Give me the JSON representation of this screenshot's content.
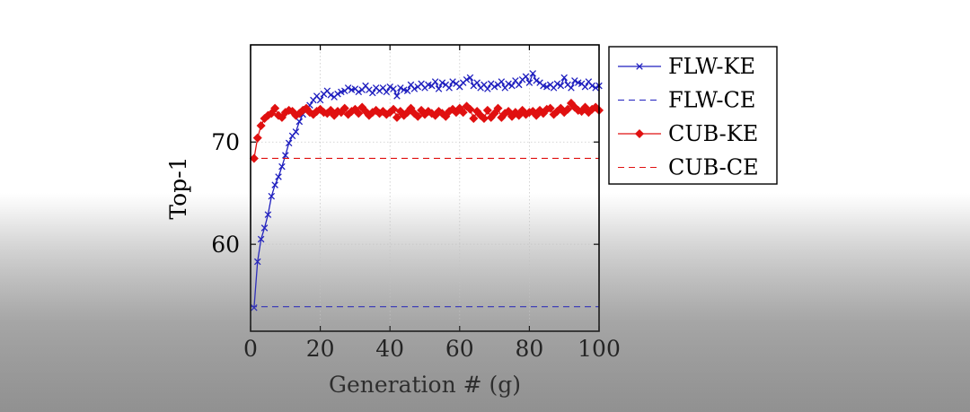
{
  "chart_data": {
    "type": "line",
    "title": "",
    "xlabel": "Generation # (g)",
    "ylabel": "Top-1",
    "xlim": [
      0,
      100
    ],
    "ylim": [
      51.5,
      79.5
    ],
    "xticks": [
      0,
      20,
      40,
      60,
      80,
      100
    ],
    "yticks": [
      60,
      70
    ],
    "grid": true,
    "legend_position": "outside-right-top",
    "series": [
      {
        "name": "FLW-KE",
        "color": "#1f1fbf",
        "style": "solid",
        "marker": "x",
        "x": [
          1,
          2,
          3,
          4,
          5,
          6,
          7,
          8,
          9,
          10,
          11,
          12,
          13,
          14,
          15,
          16,
          17,
          18,
          19,
          20,
          21,
          22,
          23,
          24,
          25,
          26,
          27,
          28,
          29,
          30,
          31,
          32,
          33,
          34,
          35,
          36,
          37,
          38,
          39,
          40,
          41,
          42,
          43,
          44,
          45,
          46,
          47,
          48,
          49,
          50,
          51,
          52,
          53,
          54,
          55,
          56,
          57,
          58,
          59,
          60,
          61,
          62,
          63,
          64,
          65,
          66,
          67,
          68,
          69,
          70,
          71,
          72,
          73,
          74,
          75,
          76,
          77,
          78,
          79,
          80,
          81,
          82,
          83,
          84,
          85,
          86,
          87,
          88,
          89,
          90,
          91,
          92,
          93,
          94,
          95,
          96,
          97,
          98,
          99,
          100
        ],
        "y": [
          53.8,
          58.3,
          60.5,
          61.6,
          62.9,
          64.7,
          65.8,
          66.6,
          67.6,
          68.7,
          69.9,
          70.6,
          71.0,
          72.0,
          72.7,
          73.2,
          73.6,
          74.1,
          74.5,
          74.1,
          74.7,
          75.0,
          74.6,
          74.4,
          74.7,
          74.9,
          75.0,
          75.3,
          75.1,
          75.2,
          74.9,
          75.1,
          75.5,
          75.1,
          74.8,
          75.3,
          75.0,
          75.3,
          74.9,
          75.4,
          75.2,
          74.5,
          75.3,
          75.1,
          75.0,
          75.6,
          75.2,
          75.4,
          75.7,
          75.3,
          75.6,
          75.5,
          75.9,
          75.2,
          75.8,
          75.6,
          75.3,
          75.9,
          75.7,
          75.4,
          75.8,
          76.1,
          76.3,
          75.5,
          75.8,
          75.3,
          75.6,
          75.2,
          75.7,
          75.4,
          75.6,
          75.9,
          75.3,
          75.7,
          75.5,
          76.0,
          75.6,
          76.1,
          76.4,
          75.8,
          76.7,
          76.0,
          75.8,
          75.5,
          75.4,
          75.6,
          75.3,
          75.7,
          75.5,
          76.3,
          75.6,
          75.3,
          76.0,
          75.8,
          75.7,
          75.4,
          75.9,
          75.5,
          75.3,
          75.5
        ]
      },
      {
        "name": "FLW-CE",
        "color": "#1f1fbf",
        "style": "dashed",
        "marker": "none",
        "x": [
          0,
          100
        ],
        "y": [
          53.9,
          53.9
        ]
      },
      {
        "name": "CUB-KE",
        "color": "#e01010",
        "style": "solid",
        "marker": "diamond",
        "x": [
          1,
          2,
          3,
          4,
          5,
          6,
          7,
          8,
          9,
          10,
          11,
          12,
          13,
          14,
          15,
          16,
          17,
          18,
          19,
          20,
          21,
          22,
          23,
          24,
          25,
          26,
          27,
          28,
          29,
          30,
          31,
          32,
          33,
          34,
          35,
          36,
          37,
          38,
          39,
          40,
          41,
          42,
          43,
          44,
          45,
          46,
          47,
          48,
          49,
          50,
          51,
          52,
          53,
          54,
          55,
          56,
          57,
          58,
          59,
          60,
          61,
          62,
          63,
          64,
          65,
          66,
          67,
          68,
          69,
          70,
          71,
          72,
          73,
          74,
          75,
          76,
          77,
          78,
          79,
          80,
          81,
          82,
          83,
          84,
          85,
          86,
          87,
          88,
          89,
          90,
          91,
          92,
          93,
          94,
          95,
          96,
          97,
          98,
          99,
          100
        ],
        "y": [
          68.4,
          70.4,
          71.6,
          72.3,
          72.6,
          72.8,
          73.3,
          72.6,
          72.4,
          72.9,
          73.1,
          73.0,
          72.6,
          72.8,
          73.1,
          73.3,
          72.9,
          72.7,
          73.0,
          73.2,
          72.9,
          72.8,
          73.1,
          72.6,
          73.0,
          72.9,
          73.3,
          72.7,
          73.0,
          73.2,
          72.8,
          73.4,
          73.0,
          72.6,
          72.9,
          73.1,
          72.8,
          73.0,
          72.7,
          72.9,
          73.2,
          72.4,
          73.0,
          72.6,
          72.9,
          73.3,
          72.8,
          72.5,
          73.1,
          72.7,
          73.0,
          72.8,
          72.6,
          73.0,
          72.8,
          72.5,
          73.0,
          73.2,
          72.9,
          73.3,
          72.9,
          73.5,
          73.2,
          72.3,
          73.0,
          72.6,
          72.3,
          73.1,
          72.4,
          72.8,
          73.3,
          72.4,
          72.8,
          73.0,
          72.5,
          72.9,
          72.6,
          73.1,
          72.7,
          72.9,
          73.0,
          72.6,
          73.1,
          72.8,
          73.2,
          73.3,
          72.7,
          73.0,
          73.3,
          72.9,
          73.2,
          73.8,
          73.4,
          73.1,
          73.0,
          73.4,
          72.9,
          73.2,
          73.4,
          73.1
        ]
      },
      {
        "name": "CUB-CE",
        "color": "#e01010",
        "style": "dashed",
        "marker": "none",
        "x": [
          0,
          100
        ],
        "y": [
          68.4,
          68.4
        ]
      }
    ]
  }
}
